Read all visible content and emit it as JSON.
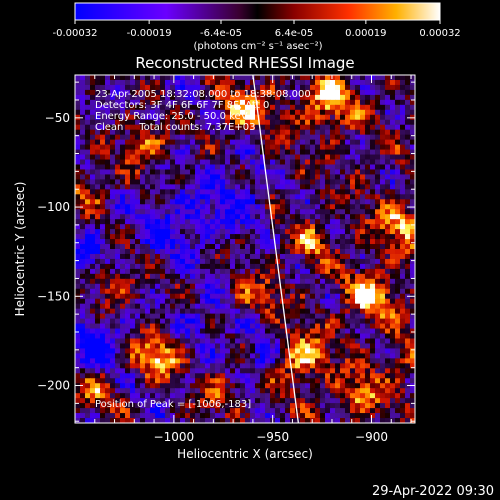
{
  "colorbar": {
    "tick_labels": [
      "-0.00032",
      "-0.00019",
      "-6.4e-05",
      "6.4e-05",
      "0.00019",
      "0.00032"
    ],
    "tick_values": [
      -0.00032,
      -0.00019,
      -6.4e-05,
      6.4e-05,
      0.00019,
      0.00032
    ],
    "range": [
      -0.00032,
      0.00032
    ],
    "units_label": "(photons cm⁻² s⁻¹ asec⁻²)"
  },
  "chart_data": {
    "type": "heatmap",
    "title": "Reconstructed RHESSI Image",
    "xlabel": "Heliocentric X (arcsec)",
    "ylabel": "Heliocentric Y (arcsec)",
    "xlim": [
      -1050,
      -878
    ],
    "ylim": [
      -221,
      -26
    ],
    "x_ticks": [
      -1000,
      -950,
      -900
    ],
    "x_tick_labels": [
      "−1000",
      "−950",
      "−900"
    ],
    "y_ticks": [
      -50,
      -100,
      -150,
      -200
    ],
    "y_tick_labels": [
      "−50",
      "−100",
      "−150",
      "−200"
    ],
    "colormap": "blue-purple-red-yellow-white",
    "limb_line": [
      [
        -960,
        -26
      ],
      [
        -937,
        -221
      ]
    ],
    "hot_spots": [
      {
        "x": -1008,
        "y": -183,
        "strength": 1.0,
        "width": 9
      },
      {
        "x": -965,
        "y": -45,
        "strength": 0.85,
        "width": 10
      },
      {
        "x": -922,
        "y": -42,
        "strength": 0.8,
        "width": 10
      },
      {
        "x": -885,
        "y": -110,
        "strength": 0.75,
        "width": 9
      },
      {
        "x": -900,
        "y": -150,
        "strength": 0.85,
        "width": 9
      },
      {
        "x": -935,
        "y": -185,
        "strength": 0.9,
        "width": 9
      },
      {
        "x": -905,
        "y": -205,
        "strength": 0.7,
        "width": 8
      },
      {
        "x": -1015,
        "y": -65,
        "strength": 0.7,
        "width": 9
      },
      {
        "x": -1045,
        "y": -90,
        "strength": 0.6,
        "width": 8
      },
      {
        "x": -1030,
        "y": -145,
        "strength": 0.65,
        "width": 8
      },
      {
        "x": -960,
        "y": -150,
        "strength": 0.55,
        "width": 8
      },
      {
        "x": -930,
        "y": -120,
        "strength": 0.5,
        "width": 7
      },
      {
        "x": -880,
        "y": -185,
        "strength": 0.6,
        "width": 7
      },
      {
        "x": -975,
        "y": -205,
        "strength": 0.65,
        "width": 8
      },
      {
        "x": -1040,
        "y": -205,
        "strength": 0.55,
        "width": 8
      }
    ],
    "cold_spots": [
      {
        "x": -1040,
        "y": -175,
        "depth": 0.9,
        "width": 9
      },
      {
        "x": -1000,
        "y": -110,
        "depth": 0.6,
        "width": 12
      },
      {
        "x": -970,
        "y": -95,
        "depth": 0.55,
        "width": 12
      },
      {
        "x": -1045,
        "y": -125,
        "depth": 0.7,
        "width": 8
      },
      {
        "x": -955,
        "y": -185,
        "depth": 0.55,
        "width": 8
      },
      {
        "x": -985,
        "y": -165,
        "depth": 0.5,
        "width": 9
      }
    ],
    "peak_marker": {
      "x": -1006,
      "y": -183
    }
  },
  "info": {
    "time_range": "23-Apr-2005 18:32:08.000 to 18:38:08.000",
    "detectors": "Detectors: 3F 4F 6F 6F 7F 8F, Att 0",
    "energy": "Energy Range: 25.0 - 50.0 keV",
    "method": "Clean     Total counts: 7.37E+03",
    "peak": "Position of Peak = [-1006,-183]"
  },
  "footer": {
    "timestamp": "29-Apr-2022 09:30"
  }
}
